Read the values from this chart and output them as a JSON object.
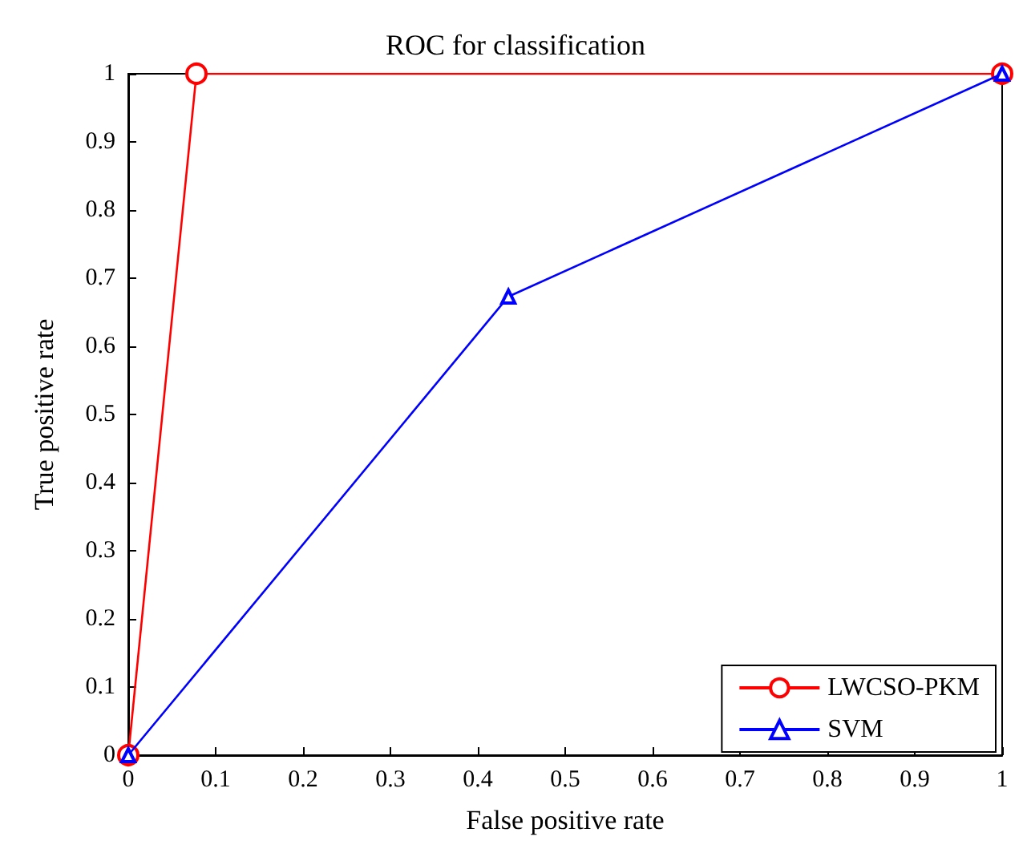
{
  "chart_data": {
    "type": "line",
    "title": "ROC for classification",
    "xlabel": "False positive rate",
    "ylabel": "True positive rate",
    "series": [
      {
        "name": "LWCSO-PKM",
        "color": "#ff0000",
        "marker": "circle",
        "x": [
          0,
          0.078,
          1
        ],
        "values": [
          0,
          1,
          1
        ]
      },
      {
        "name": "SVM",
        "color": "#0000ff",
        "marker": "triangle",
        "x": [
          0,
          0.435,
          1
        ],
        "values": [
          0,
          0.673,
          1
        ]
      }
    ],
    "xlim": [
      0,
      1
    ],
    "ylim": [
      0,
      1
    ],
    "xticks": [
      0,
      0.1,
      0.2,
      0.3,
      0.4,
      0.5,
      0.6,
      0.7,
      0.8,
      0.9,
      1
    ],
    "yticks": [
      0,
      0.1,
      0.2,
      0.3,
      0.4,
      0.5,
      0.6,
      0.7,
      0.8,
      0.9,
      1
    ],
    "grid": false,
    "legend": "bottom right"
  }
}
